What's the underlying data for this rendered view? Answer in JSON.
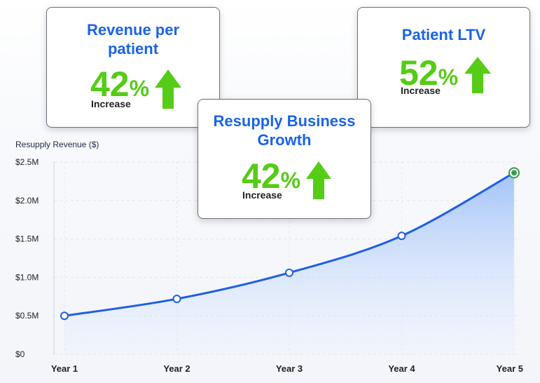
{
  "cards": [
    {
      "title_line1": "Revenue per",
      "title_line2": "patient",
      "value": "42",
      "unit": "%",
      "label": "Increase"
    },
    {
      "title_line1": "Patient LTV",
      "title_line2": "",
      "value": "52",
      "unit": "%",
      "label": "Increase"
    },
    {
      "title_line1": "Resupply Business",
      "title_line2": "Growth",
      "value": "42",
      "unit": "%",
      "label": "Increase"
    }
  ],
  "colors": {
    "accent": "#1b63e6",
    "positive": "#55cc15",
    "line": "#1f5fe0",
    "area": "#b8d2fb"
  },
  "chart_data": {
    "type": "area",
    "ylabel": "Resupply Revenue ($)",
    "categories": [
      "Year 1",
      "Year 2",
      "Year 3",
      "Year 4",
      "Year 5"
    ],
    "series": [
      {
        "values": [
          0.5,
          0.72,
          1.06,
          1.54,
          2.36
        ]
      }
    ],
    "yticks": [
      0,
      0.5,
      1.0,
      1.5,
      2.0,
      2.5
    ],
    "ytick_labels": [
      "$0",
      "$0.5M",
      "$1.0M",
      "$1.5M",
      "$2.0M",
      "$2.5M"
    ],
    "ylim": [
      0,
      2.5
    ],
    "grid": true
  }
}
